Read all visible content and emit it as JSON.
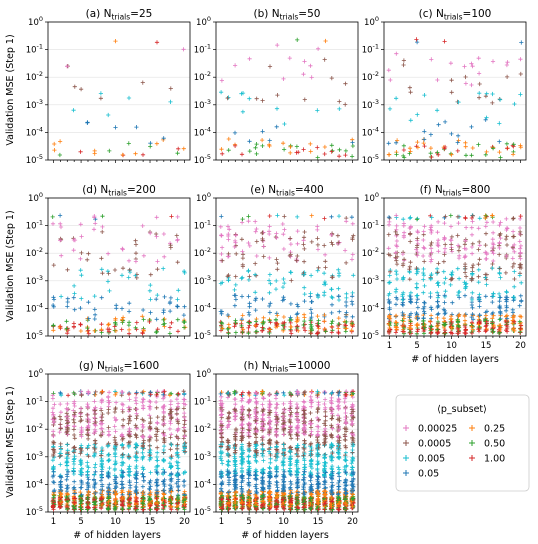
{
  "figure": {
    "ylabel": "Validation MSE (Step 1)",
    "xlabel": "# of hidden layers",
    "legend_title": "⟨p_subset⟩"
  },
  "chart_data": [
    {
      "type": "scatter",
      "title_prefix": "(a) N",
      "title_sub": "trials",
      "title_suffix": "=25",
      "n_trials": 25,
      "x_range": [
        1,
        20
      ],
      "ylim": [
        1e-05,
        1
      ],
      "y_scale": "log",
      "grid": true
    },
    {
      "type": "scatter",
      "title_prefix": "(b) N",
      "title_sub": "trials",
      "title_suffix": "=50",
      "n_trials": 50,
      "x_range": [
        1,
        20
      ],
      "ylim": [
        1e-05,
        1
      ],
      "y_scale": "log",
      "grid": true
    },
    {
      "type": "scatter",
      "title_prefix": "(c) N",
      "title_sub": "trials",
      "title_suffix": "=100",
      "n_trials": 100,
      "x_range": [
        1,
        20
      ],
      "ylim": [
        1e-05,
        1
      ],
      "y_scale": "log",
      "grid": true
    },
    {
      "type": "scatter",
      "title_prefix": "(d) N",
      "title_sub": "trials",
      "title_suffix": "=200",
      "n_trials": 200,
      "x_range": [
        1,
        20
      ],
      "ylim": [
        1e-05,
        1
      ],
      "y_scale": "log",
      "grid": true
    },
    {
      "type": "scatter",
      "title_prefix": "(e) N",
      "title_sub": "trials",
      "title_suffix": "=400",
      "n_trials": 400,
      "x_range": [
        1,
        20
      ],
      "ylim": [
        1e-05,
        1
      ],
      "y_scale": "log",
      "grid": true
    },
    {
      "type": "scatter",
      "title_prefix": "(f) N",
      "title_sub": "trials",
      "title_suffix": "=800",
      "n_trials": 800,
      "x_range": [
        1,
        20
      ],
      "ylim": [
        1e-05,
        1
      ],
      "y_scale": "log",
      "grid": true
    },
    {
      "type": "scatter",
      "title_prefix": "(g) N",
      "title_sub": "trials",
      "title_suffix": "=1600",
      "n_trials": 1600,
      "x_range": [
        1,
        20
      ],
      "ylim": [
        1e-05,
        1
      ],
      "y_scale": "log",
      "grid": true
    },
    {
      "type": "scatter",
      "title_prefix": "(h) N",
      "title_sub": "trials",
      "title_suffix": "=10000",
      "n_trials": 10000,
      "x_range": [
        1,
        20
      ],
      "ylim": [
        1e-05,
        1
      ],
      "y_scale": "log",
      "grid": true
    }
  ],
  "series": [
    {
      "name": "0.00025",
      "color": "#e377c2",
      "typical_mse": [
        0.005,
        0.15
      ]
    },
    {
      "name": "0.0005",
      "color": "#8c564b",
      "typical_mse": [
        0.001,
        0.06
      ]
    },
    {
      "name": "0.005",
      "color": "#17becf",
      "typical_mse": [
        0.0002,
        0.003
      ]
    },
    {
      "name": "0.05",
      "color": "#1f77b4",
      "typical_mse": [
        4e-05,
        0.0003
      ]
    },
    {
      "name": "0.25",
      "color": "#ff7f0e",
      "typical_mse": [
        1.5e-05,
        6e-05
      ]
    },
    {
      "name": "0.50",
      "color": "#2ca02c",
      "typical_mse": [
        1.2e-05,
        4e-05
      ]
    },
    {
      "name": "1.00",
      "color": "#d62728",
      "typical_mse": [
        1.2e-05,
        3.5e-05
      ]
    }
  ],
  "y_ticks": [
    {
      "v": 0,
      "base": "10",
      "exp": "0"
    },
    {
      "v": -1,
      "base": "10",
      "exp": "-1"
    },
    {
      "v": -2,
      "base": "10",
      "exp": "-2"
    },
    {
      "v": -3,
      "base": "10",
      "exp": "-3"
    },
    {
      "v": -4,
      "base": "10",
      "exp": "-4"
    },
    {
      "v": -5,
      "base": "10",
      "exp": "-5"
    }
  ],
  "x_ticks": [
    "1",
    "5",
    "10",
    "15",
    "20"
  ],
  "x_tick_values": [
    1,
    5,
    10,
    15,
    20
  ]
}
